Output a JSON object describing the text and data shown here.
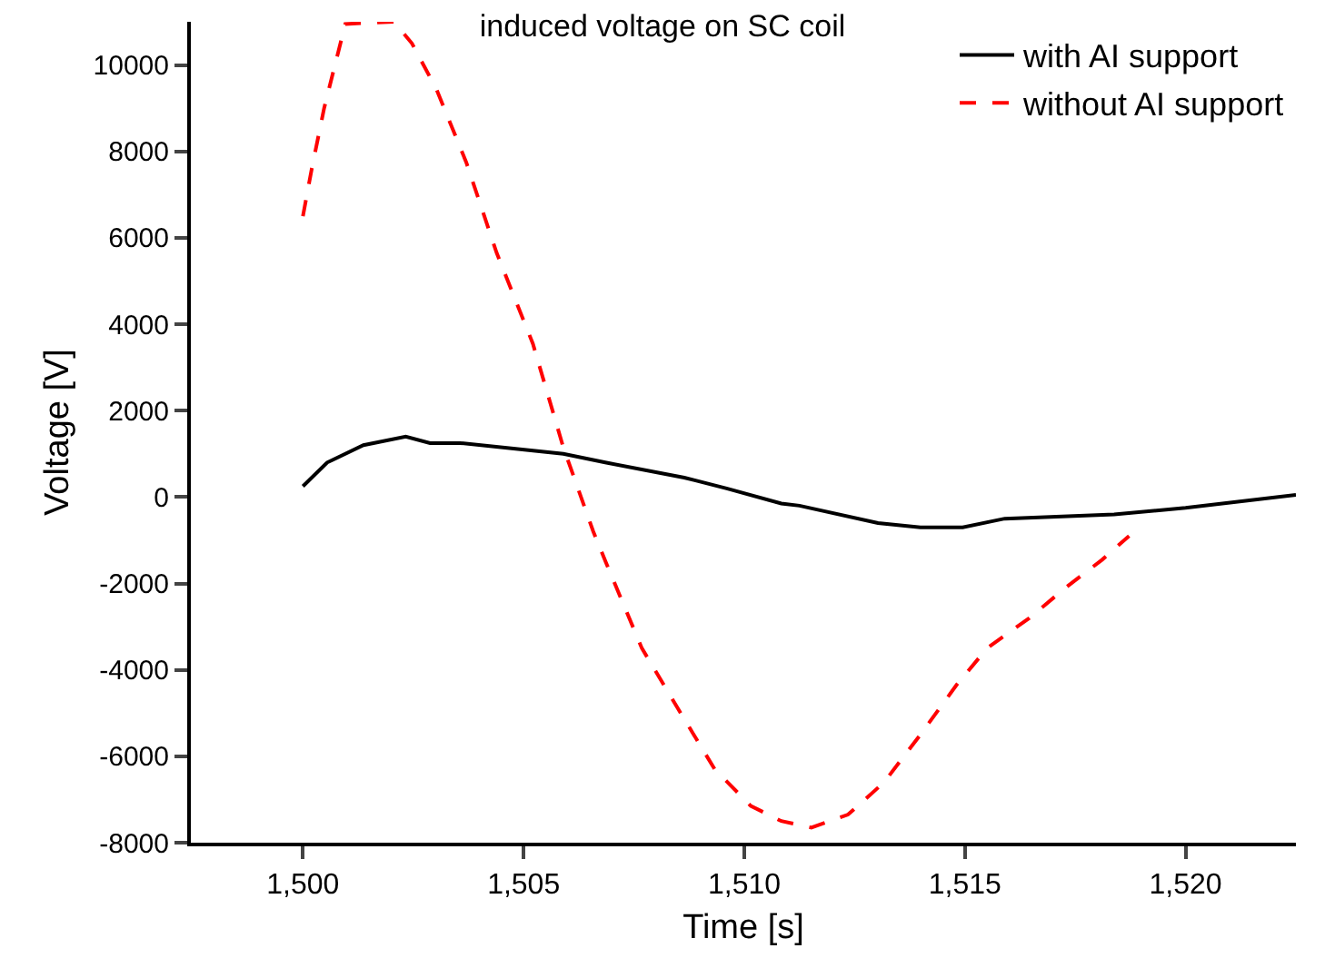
{
  "chart_data": {
    "type": "line",
    "title": "induced voltage on SC coil",
    "xlabel": "Time [s]",
    "ylabel": "Voltage [V]",
    "xlim": [
      1497.46,
      1522.5
    ],
    "ylim": [
      -8000,
      11000
    ],
    "xticks": [
      {
        "value": 1500,
        "label": "1,500"
      },
      {
        "value": 1505,
        "label": "1,505"
      },
      {
        "value": 1510,
        "label": "1,510"
      },
      {
        "value": 1515,
        "label": "1,515"
      },
      {
        "value": 1520,
        "label": "1,520"
      }
    ],
    "yticks": [
      -8000,
      -6000,
      -4000,
      -2000,
      0,
      2000,
      4000,
      6000,
      8000,
      10000
    ],
    "grid": false,
    "legend": "top right",
    "marker": "none",
    "series": [
      {
        "name": "with AI support",
        "color": "#000000",
        "line_style": "solid",
        "x": [
          1500,
          1500.55,
          1501.37,
          1502.33,
          1502.88,
          1503.56,
          1505.9,
          1506.85,
          1508.64,
          1509.6,
          1510.84,
          1511.25,
          1513.03,
          1513.99,
          1514.95,
          1515.9,
          1518.38,
          1520,
          1522.5
        ],
        "values": [
          250,
          800,
          1200,
          1400,
          1250,
          1250,
          1000,
          800,
          450,
          200,
          -150,
          -200,
          -600,
          -700,
          -700,
          -500,
          -400,
          -250,
          50
        ]
      },
      {
        "name": "without AI support",
        "color": "#ff0000",
        "line_style": "dashed",
        "x": [
          1500,
          1500.2,
          1500.48,
          1500.96,
          1502.06,
          1502.47,
          1503.02,
          1503.7,
          1504.39,
          1505.21,
          1505.9,
          1506.58,
          1506.86,
          1507.68,
          1508.5,
          1509.33,
          1510.15,
          1510.84,
          1511.52,
          1512.35,
          1513.17,
          1513.99,
          1514.81,
          1515.5,
          1516.46,
          1517.28,
          1518.11,
          1518.72
        ],
        "values": [
          6500,
          7600,
          9000,
          10950,
          11000,
          10500,
          9450,
          7750,
          5650,
          3550,
          1150,
          -800,
          -1500,
          -3500,
          -4900,
          -6300,
          -7150,
          -7500,
          -7650,
          -7350,
          -6600,
          -5500,
          -4350,
          -3500,
          -2800,
          -2100,
          -1450,
          -900
        ]
      }
    ]
  }
}
